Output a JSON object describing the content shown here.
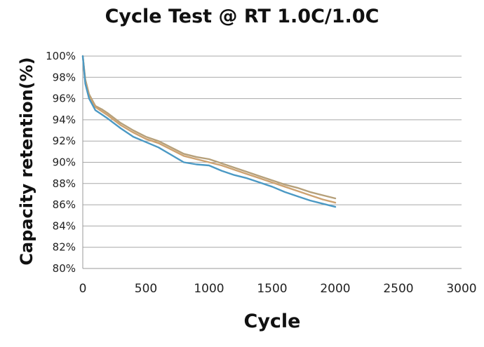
{
  "chart_data": {
    "type": "line",
    "title": "Cycle Test @ RT 1.0C/1.0C",
    "xlabel": "Cycle",
    "ylabel": "Capacity retention(%)",
    "xlim": [
      0,
      3000
    ],
    "ylim": [
      80,
      100
    ],
    "xticks": [
      0,
      500,
      1000,
      1500,
      2000,
      2500,
      3000
    ],
    "xtick_labels": [
      "0",
      "500",
      "1000",
      "1500",
      "2000",
      "2500",
      "3000"
    ],
    "yticks": [
      80,
      82,
      84,
      86,
      88,
      90,
      92,
      94,
      96,
      98,
      100
    ],
    "ytick_labels": [
      "80%",
      "82%",
      "84%",
      "86%",
      "88%",
      "90%",
      "92%",
      "94%",
      "96%",
      "98%",
      "100%"
    ],
    "grid": "horizontal",
    "legend": "none",
    "series": [
      {
        "color": "#b6a07a",
        "x": [
          0,
          20,
          50,
          100,
          150,
          200,
          300,
          400,
          500,
          600,
          700,
          800,
          900,
          1000,
          1100,
          1200,
          1300,
          1400,
          1500,
          1600,
          1700,
          1800,
          1900,
          2000
        ],
        "y": [
          100,
          97.8,
          96.4,
          95.3,
          95.0,
          94.6,
          93.7,
          93.0,
          92.4,
          92.0,
          91.4,
          90.8,
          90.5,
          90.3,
          89.9,
          89.5,
          89.1,
          88.7,
          88.3,
          87.9,
          87.6,
          87.2,
          86.9,
          86.6
        ]
      },
      {
        "color": "#cda271",
        "x": [
          0,
          20,
          50,
          100,
          150,
          200,
          300,
          400,
          500,
          600,
          700,
          800,
          900,
          1000,
          1100,
          1200,
          1300,
          1400,
          1500,
          1600,
          1700,
          1800,
          1900,
          2000
        ],
        "y": [
          100,
          97.6,
          96.2,
          95.2,
          94.8,
          94.4,
          93.5,
          92.8,
          92.2,
          91.8,
          91.2,
          90.6,
          90.3,
          90.0,
          89.7,
          89.3,
          88.9,
          88.5,
          88.1,
          87.7,
          87.3,
          86.9,
          86.5,
          86.2
        ]
      },
      {
        "color": "#4b99c4",
        "x": [
          0,
          20,
          50,
          100,
          150,
          200,
          300,
          400,
          500,
          600,
          700,
          800,
          900,
          1000,
          1100,
          1200,
          1300,
          1400,
          1500,
          1600,
          1700,
          1800,
          1900,
          2000
        ],
        "y": [
          100,
          97.4,
          96.0,
          94.9,
          94.5,
          94.1,
          93.2,
          92.4,
          91.9,
          91.4,
          90.7,
          90.0,
          89.8,
          89.7,
          89.2,
          88.8,
          88.5,
          88.1,
          87.7,
          87.2,
          86.8,
          86.4,
          86.1,
          85.8
        ]
      }
    ]
  }
}
